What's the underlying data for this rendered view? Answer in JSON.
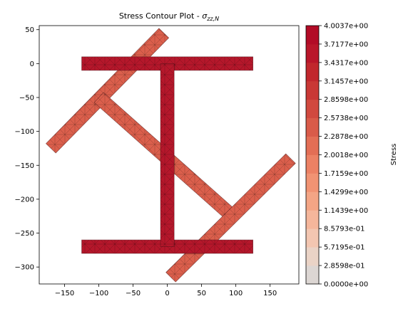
{
  "chart_data": {
    "type": "heatmap",
    "title_main": "Stress Contour Plot - ",
    "title_sigma": "σ",
    "title_sub": "zz,N",
    "xlim": [
      -187,
      192
    ],
    "ylim": [
      -325,
      56
    ],
    "x_ticks": [
      -150,
      -100,
      -50,
      0,
      50,
      100,
      150
    ],
    "x_tick_labels": [
      "−150",
      "−100",
      "−50",
      "0",
      "50",
      "100",
      "150"
    ],
    "y_ticks": [
      50,
      0,
      -50,
      -100,
      -150,
      -200,
      -250,
      -300
    ],
    "y_tick_labels": [
      "50",
      "0",
      "−50",
      "−100",
      "−150",
      "−200",
      "−250",
      "−300"
    ],
    "colorbar": {
      "label": "Stress",
      "levels": [
        "0.0000e+00",
        "2.8598e-01",
        "5.7195e-01",
        "8.5793e-01",
        "1.1439e+00",
        "1.4299e+00",
        "1.7159e+00",
        "2.0018e+00",
        "2.2878e+00",
        "2.5738e+00",
        "2.8598e+00",
        "3.1457e+00",
        "3.4317e+00",
        "3.7177e+00",
        "4.0037e+00"
      ],
      "band_colors": [
        "#dcd6d3",
        "#ead3c6",
        "#f3c6b1",
        "#f5b69b",
        "#f4a585",
        "#f19373",
        "#ec8164",
        "#e36e55",
        "#d95b49",
        "#d1493f",
        "#c93835",
        "#c1272d",
        "#b9162a",
        "#b20b26"
      ]
    },
    "members": [
      {
        "name": "top-flange",
        "shape": "rect",
        "x": [
          -125,
          125
        ],
        "y": [
          -10,
          10
        ],
        "stress": 3.95,
        "color": "#b5172b"
      },
      {
        "name": "bottom-flange",
        "shape": "rect",
        "x": [
          -125,
          125
        ],
        "y": [
          -280,
          -260
        ],
        "stress": 3.95,
        "color": "#b5172b"
      },
      {
        "name": "web",
        "shape": "rect",
        "x": [
          -10,
          10
        ],
        "y": [
          -270,
          0
        ],
        "stress": 3.95,
        "color": "#b5172b"
      },
      {
        "name": "upper-left-diagonal",
        "shape": "strip",
        "start": [
          -170,
          -125
        ],
        "end": [
          -5,
          45
        ],
        "width": 20,
        "stress": 2.8,
        "color": "#db5f4c"
      },
      {
        "name": "middle-diagonal",
        "shape": "strip",
        "start": [
          -100,
          -50
        ],
        "end": [
          95,
          -225
        ],
        "width": 20,
        "stress": 2.8,
        "color": "#db5f4c"
      },
      {
        "name": "lower-right-diagonal",
        "shape": "strip",
        "start": [
          5,
          -315
        ],
        "end": [
          180,
          -140
        ],
        "width": 20,
        "stress": 2.8,
        "color": "#db5f4c"
      }
    ]
  }
}
